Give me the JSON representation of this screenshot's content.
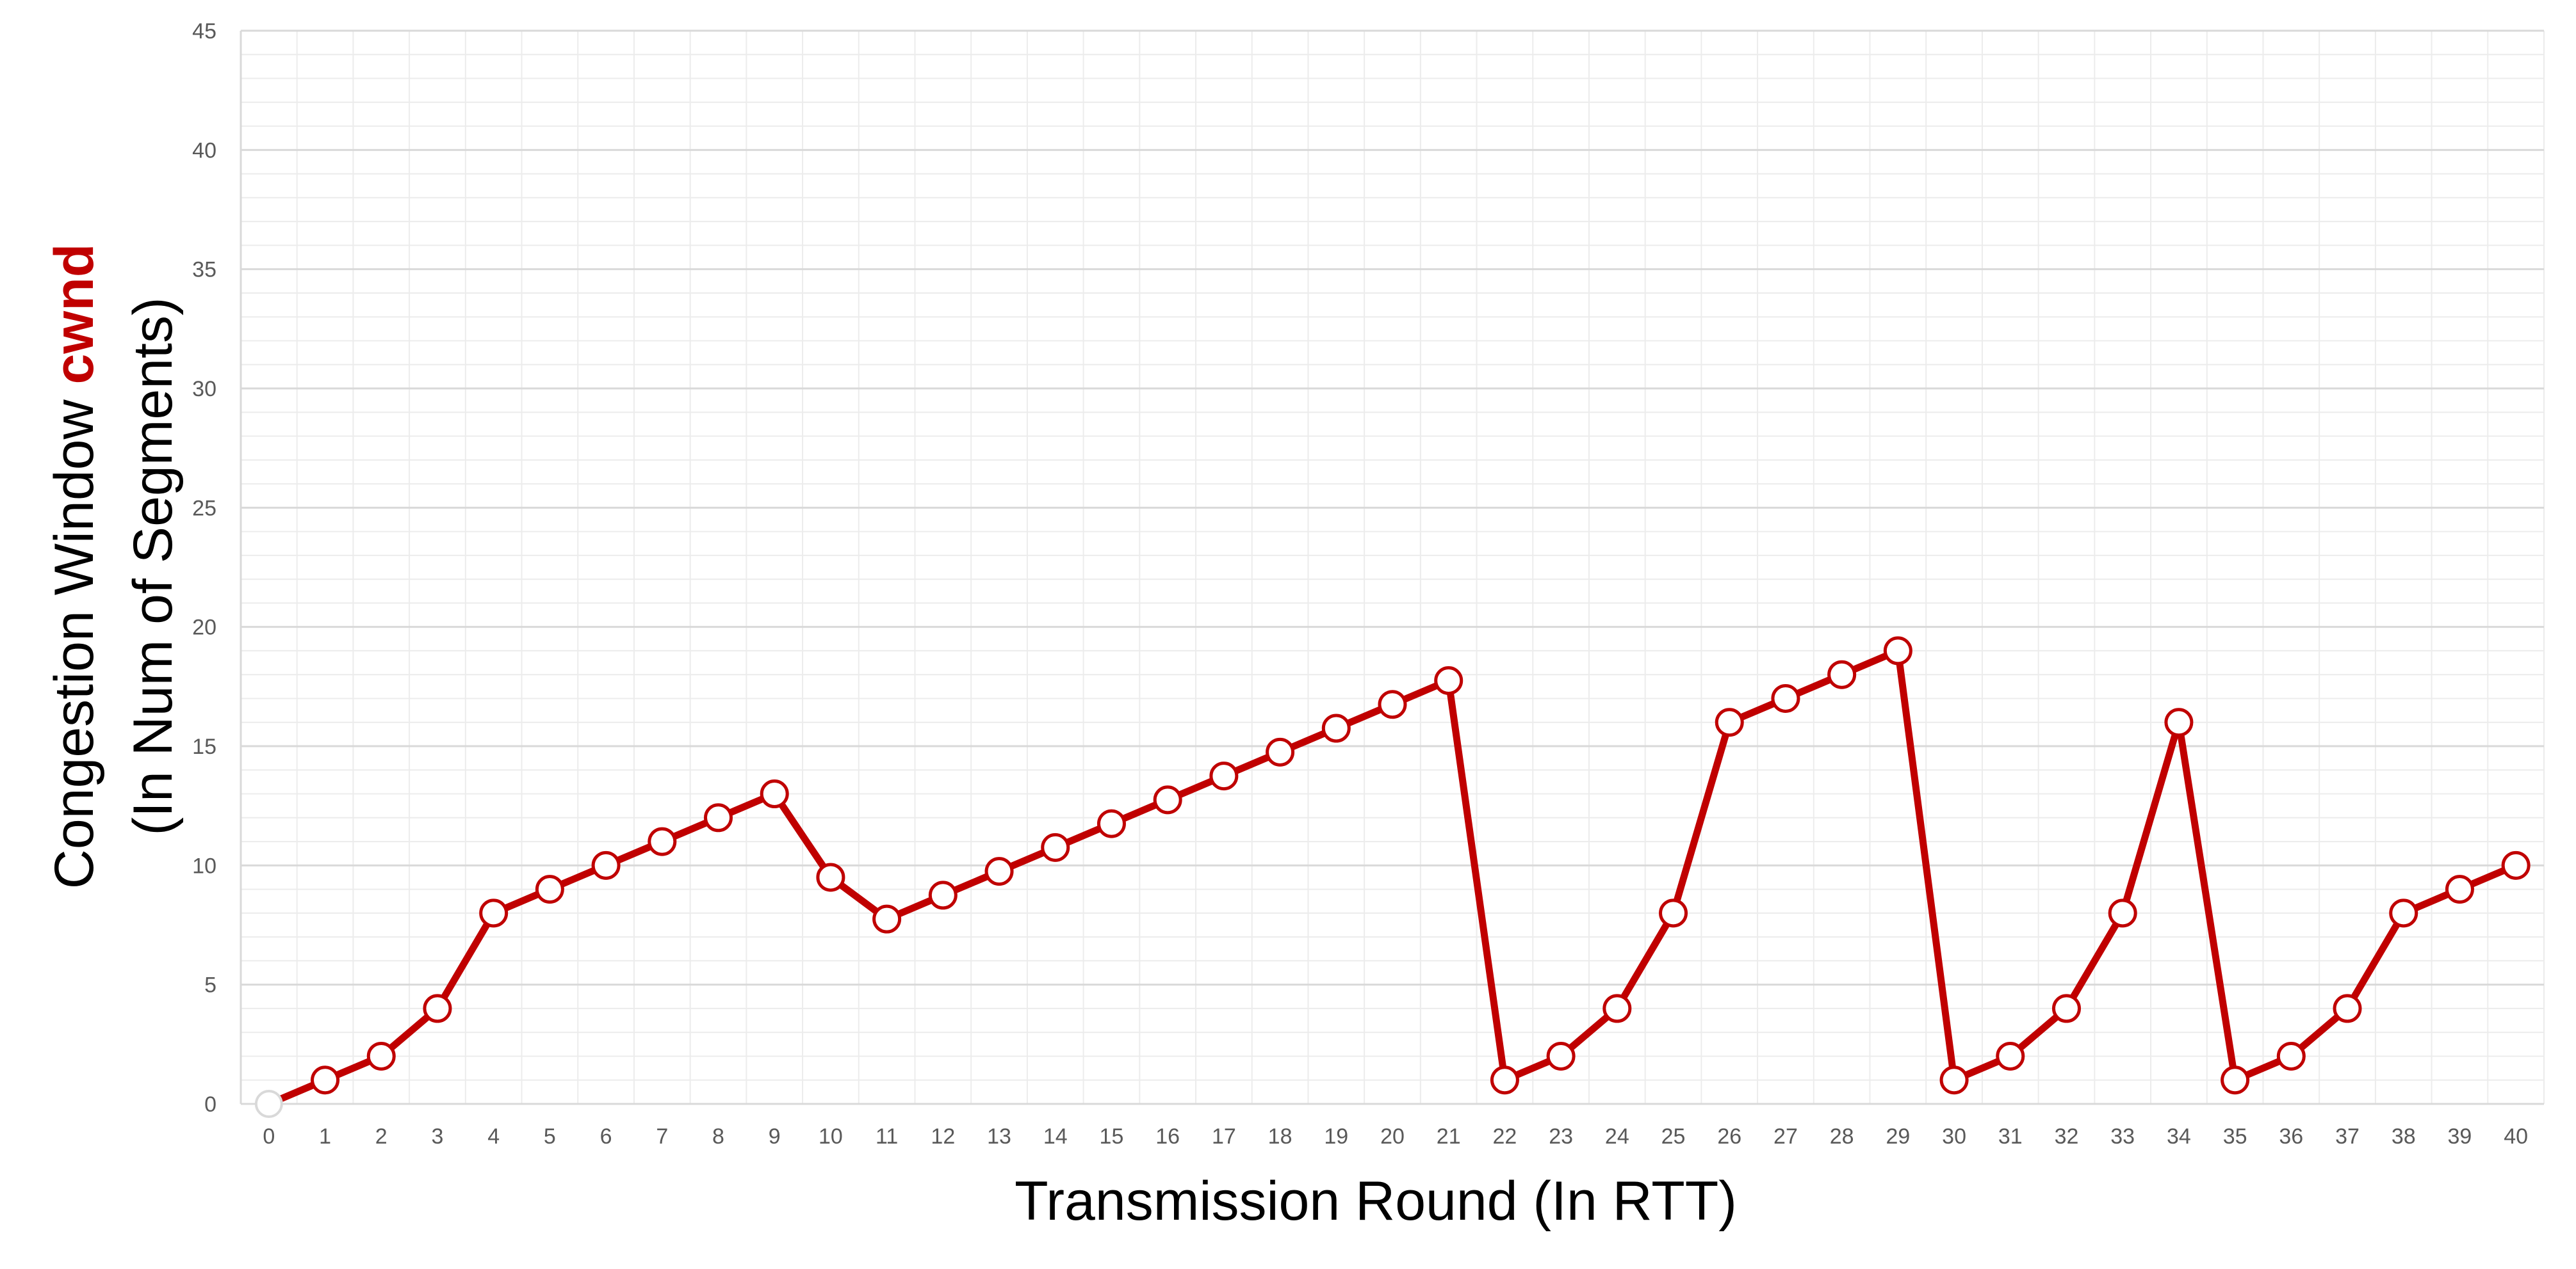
{
  "chart_data": {
    "type": "line",
    "xlabel": "Transmission Round (In RTT)",
    "ylabel_prefix": "Congestion Window ",
    "ylabel_highlight": "cwnd",
    "ylabel_line2": "(In Num of Segments)",
    "xlim": [
      0,
      40
    ],
    "ylim": [
      0,
      45
    ],
    "yticks": [
      0,
      5,
      10,
      15,
      20,
      25,
      30,
      35,
      40,
      45
    ],
    "grid": true,
    "x": [
      0,
      1,
      2,
      3,
      4,
      5,
      6,
      7,
      8,
      9,
      10,
      11,
      12,
      13,
      14,
      15,
      16,
      17,
      18,
      19,
      20,
      21,
      22,
      23,
      24,
      25,
      26,
      27,
      28,
      29,
      30,
      31,
      32,
      33,
      34,
      35,
      36,
      37,
      38,
      39,
      40
    ],
    "series": [
      {
        "values": [
          0,
          1,
          2,
          4,
          8,
          9,
          10,
          11,
          12,
          13,
          9.5,
          7.75,
          8.75,
          9.75,
          10.75,
          11.75,
          12.75,
          13.75,
          14.75,
          15.75,
          16.75,
          17.75,
          1,
          2,
          4,
          8,
          16,
          17,
          18,
          19,
          1,
          2,
          4,
          8,
          16,
          1,
          2,
          4,
          8,
          9,
          10
        ]
      }
    ],
    "colors": {
      "line": "#c00000",
      "marker_fill": "#ffffff",
      "highlight": "#c00000",
      "first_marker_border": "#d9d9d9"
    }
  }
}
